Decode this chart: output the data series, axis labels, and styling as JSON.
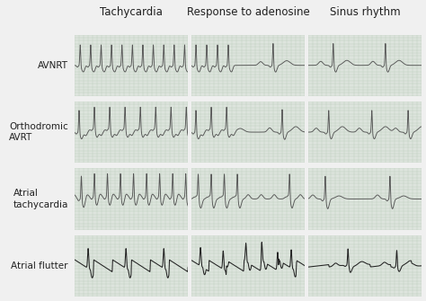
{
  "col_headers": [
    "Tachycardia",
    "Response to adenosine",
    "Sinus rhythm"
  ],
  "row_labels": [
    [
      "AVNRT",
      ""
    ],
    [
      "Orthodromic",
      "AVRT"
    ],
    [
      "Atrial",
      "tachycardia"
    ],
    [
      "Atrial flutter",
      ""
    ]
  ],
  "bg_color": "#dde4dd",
  "grid_color": "#b8c8b8",
  "line_color_normal": "#555555",
  "line_color_flutter": "#222222",
  "fig_bg": "#f0f0f0",
  "header_fontsize": 8.5,
  "label_fontsize": 7.5
}
